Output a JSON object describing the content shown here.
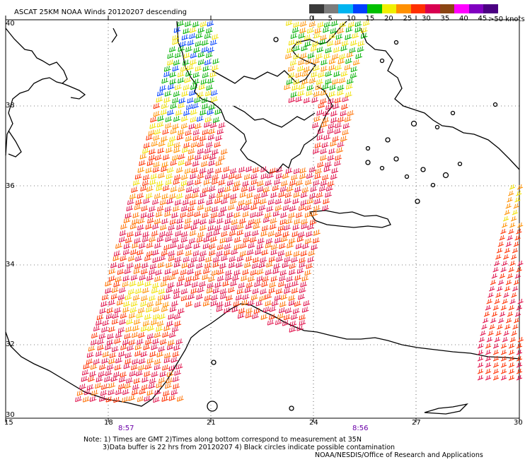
{
  "title": "ASCAT 25KM NOAA Winds 20120207 descending",
  "legend": {
    "unit": ">50 knots",
    "ticks": [
      "0",
      "5",
      "10",
      "15",
      "20",
      "25",
      "30",
      "35",
      "40",
      "45"
    ],
    "colors": [
      "#3a3a3a",
      "#7c7c7c",
      "#00b4f0",
      "#0040ff",
      "#00c000",
      "#f0f000",
      "#ff9000",
      "#ff3000",
      "#d80050",
      "#8b4513",
      "#ff00ff",
      "#8000c0",
      "#4b0082"
    ]
  },
  "axes": {
    "lat_labels": [
      "40",
      "38",
      "36",
      "34",
      "32",
      "30"
    ],
    "lon_labels": [
      "15",
      "18",
      "21",
      "24",
      "27",
      "30"
    ]
  },
  "pass_times": [
    "8:57",
    "8:56"
  ],
  "notes": {
    "line1": "Note: 1) Times are GMT 2)Times along bottom correspond to measurement at 35N",
    "line2": "3)Data buffer is 22 hrs from 20120207 4) Black circles indicate possible contamination",
    "credit": "NOAA/NESDIS/Office of Research and Applications"
  },
  "map": {
    "lat_range": [
      30,
      40
    ],
    "lon_range": [
      15,
      30
    ],
    "grid_step_deg": [
      3,
      2
    ]
  }
}
